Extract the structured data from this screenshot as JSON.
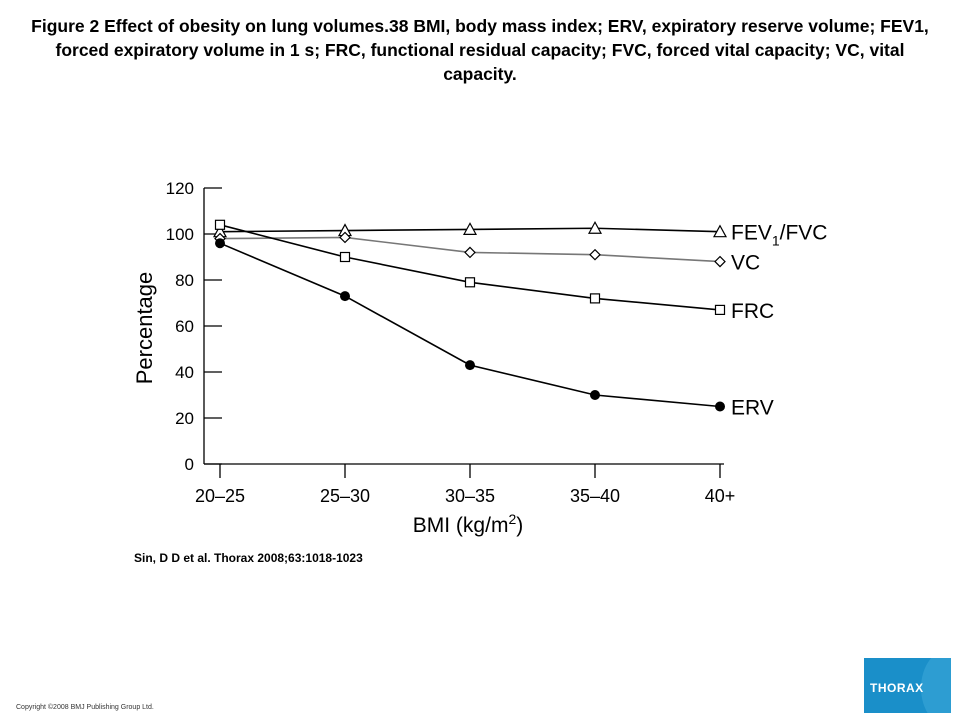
{
  "caption": "Figure 2 Effect of obesity on lung volumes.38 BMI, body mass index; ERV, expiratory reserve volume; FEV1, forced expiratory volume in 1 s; FRC, functional residual capacity; FVC, forced vital capacity; VC, vital capacity.",
  "source": "Sin, D D et al. Thorax 2008;63:1018-1023",
  "copyright": "Copyright ©2008 BMJ Publishing Group Ltd.",
  "logo_text": "THORAX",
  "colors": {
    "logo_bg": "#1a8fc9",
    "vc_line": "#777777",
    "line": "#000000"
  },
  "chart_data": {
    "type": "line",
    "title": "",
    "xlabel": "BMI (kg/m2)",
    "ylabel": "Percentage",
    "categories": [
      "20–25",
      "25–30",
      "30–35",
      "35–40",
      "40+"
    ],
    "yticks": [
      0,
      20,
      40,
      60,
      80,
      100,
      120
    ],
    "ylim": [
      0,
      120
    ],
    "grid": false,
    "legend": "labels at line ends (right)",
    "series": [
      {
        "name": "FEV1/FVC",
        "name_main": "FEV",
        "name_sub": "1",
        "name_rest": "/FVC",
        "marker": "triangle-open",
        "values": [
          101,
          101.5,
          102,
          102.5,
          101
        ]
      },
      {
        "name": "VC",
        "marker": "diamond-open",
        "values": [
          98,
          98.5,
          92,
          91,
          88
        ]
      },
      {
        "name": "FRC",
        "marker": "square-open",
        "values": [
          104,
          90,
          79,
          72,
          67
        ]
      },
      {
        "name": "ERV",
        "marker": "circle-filled",
        "values": [
          96,
          73,
          43,
          30,
          25
        ]
      }
    ]
  }
}
